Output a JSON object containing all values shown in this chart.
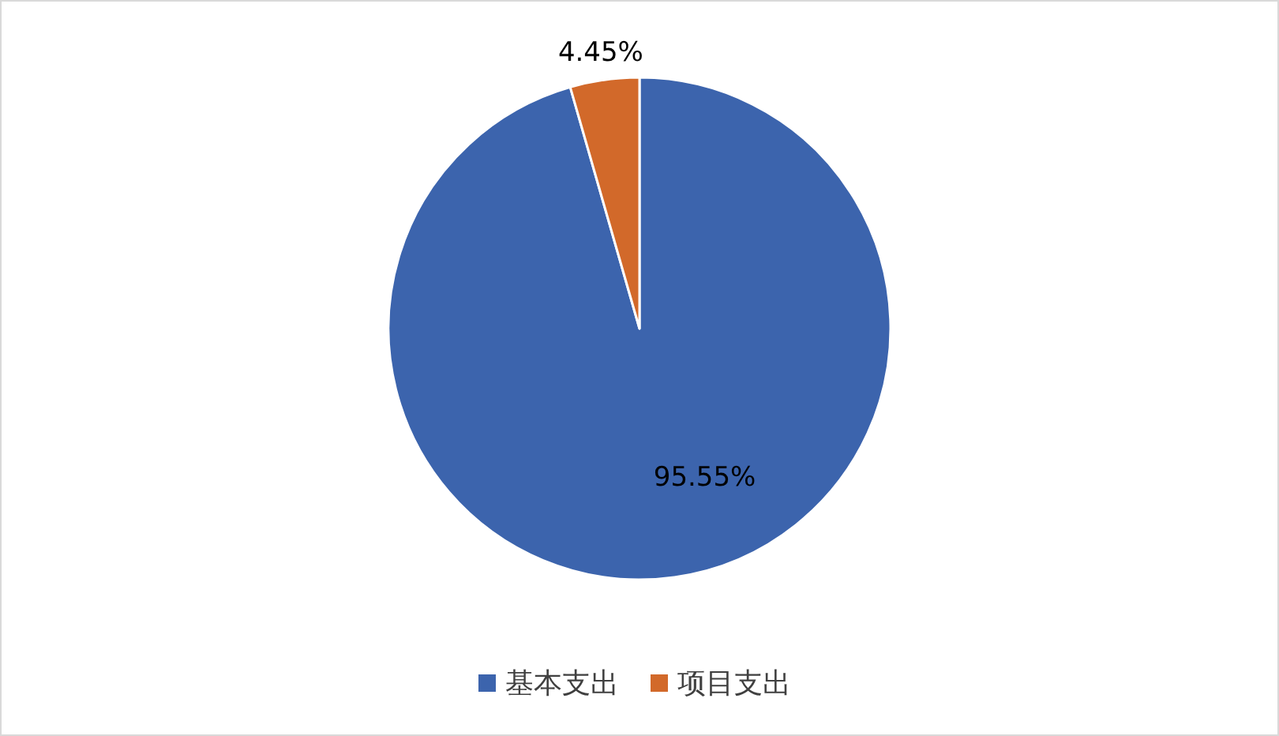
{
  "chart_data": {
    "type": "pie",
    "categories": [
      "基本支出",
      "项目支出"
    ],
    "values": [
      95.55,
      4.45
    ],
    "colors": [
      "#3c64ad",
      "#d2692a"
    ],
    "value_labels": [
      "95.55%",
      "4.45%"
    ],
    "legend": "bottom"
  }
}
